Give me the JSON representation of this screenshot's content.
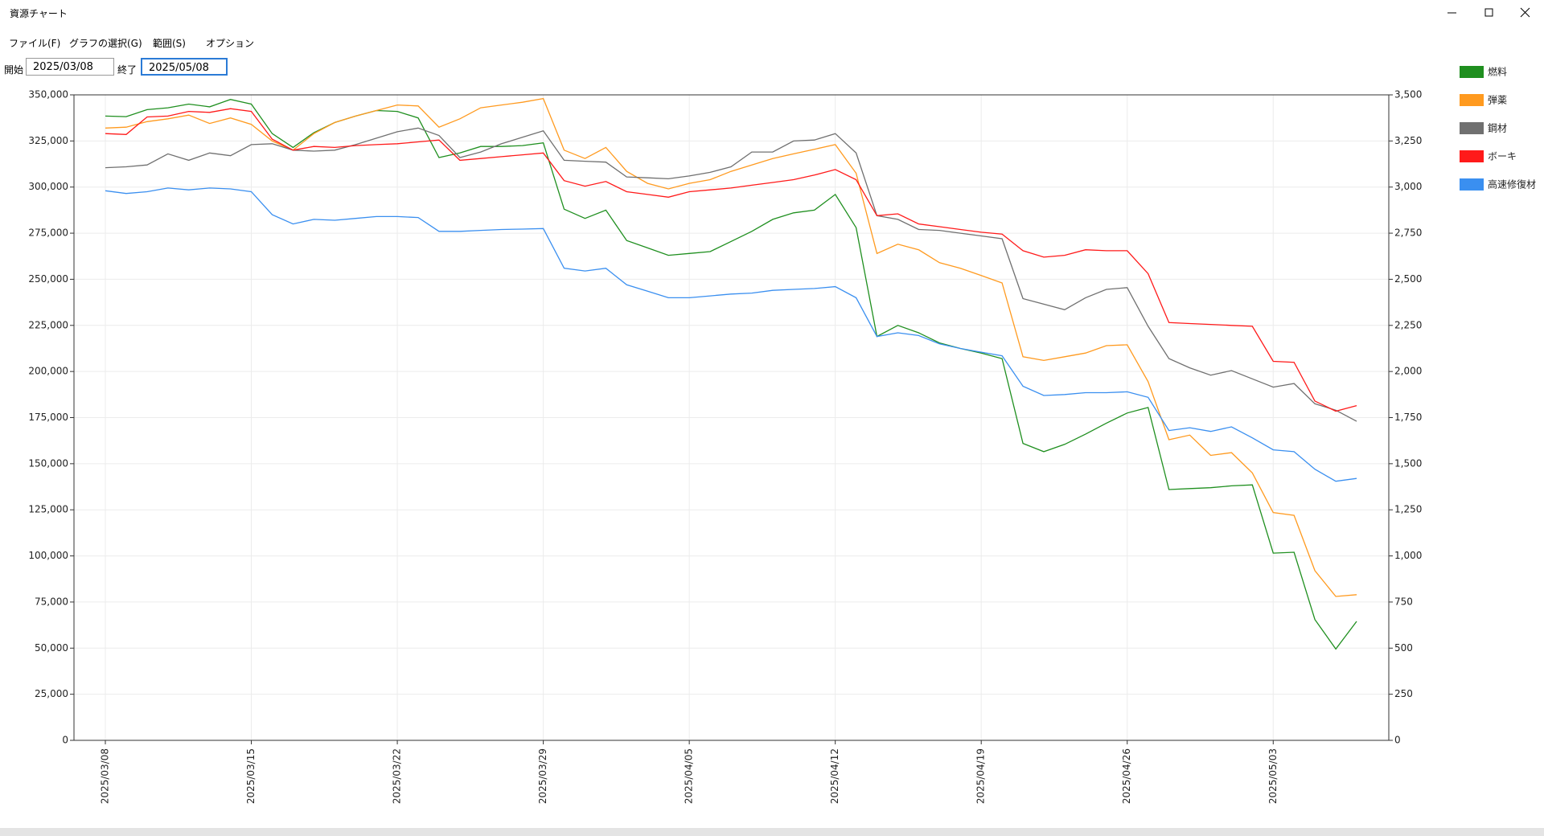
{
  "window": {
    "title": "資源チャート"
  },
  "menu": [
    "ファイル(F)",
    "グラフの選択(G)",
    "範囲(S)",
    "オプション"
  ],
  "range": {
    "start_label": "開始",
    "start": "2025/03/08",
    "end_label": "終了",
    "end": "2025/05/08"
  },
  "chart_data": {
    "type": "line",
    "categories": [
      "2025/03/08",
      null,
      null,
      null,
      null,
      null,
      null,
      "2025/03/15",
      null,
      null,
      null,
      null,
      null,
      null,
      "2025/03/22",
      null,
      null,
      null,
      null,
      null,
      null,
      "2025/03/29",
      null,
      null,
      null,
      null,
      null,
      null,
      "2025/04/05",
      null,
      null,
      null,
      null,
      null,
      null,
      "2025/04/12",
      null,
      null,
      null,
      null,
      null,
      null,
      "2025/04/19",
      null,
      null,
      null,
      null,
      null,
      null,
      "2025/04/26",
      null,
      null,
      null,
      null,
      null,
      null,
      "2025/05/03",
      null,
      null,
      null,
      null
    ],
    "series": [
      {
        "name": "燃料",
        "color": "#1f8f1f",
        "values": [
          338500,
          338200,
          342000,
          343000,
          345000,
          343500,
          347500,
          345000,
          329000,
          321500,
          329500,
          335000,
          338500,
          341500,
          341000,
          337500,
          316000,
          318500,
          322000,
          322000,
          322500,
          324000,
          288000,
          283000,
          287500,
          271000,
          267000,
          263000,
          264000,
          265000,
          270500,
          276000,
          282500,
          286000,
          287500,
          296000,
          278000,
          219000,
          225000,
          221000,
          215500,
          212500,
          210000,
          207000,
          161000,
          156500,
          160500,
          166000,
          172000,
          177500,
          180500,
          136000,
          136500,
          137000,
          138000,
          138500,
          101500,
          102000,
          65500,
          49500,
          64500
        ]
      },
      {
        "name": "弾薬",
        "color": "#ff9a1f",
        "values": [
          332000,
          332500,
          335500,
          337000,
          339000,
          334500,
          337500,
          334000,
          325000,
          320000,
          329000,
          335000,
          338500,
          341500,
          344500,
          344000,
          332500,
          337000,
          343000,
          344500,
          346000,
          348000,
          320000,
          315500,
          321500,
          308500,
          302000,
          299000,
          302000,
          304000,
          308500,
          312000,
          315500,
          318000,
          320500,
          323000,
          307500,
          264000,
          269000,
          266000,
          259000,
          256000,
          252000,
          248000,
          208000,
          206000,
          208000,
          210000,
          214000,
          214500,
          194500,
          163000,
          165500,
          154500,
          156000,
          145000,
          123500,
          122000,
          92000,
          78000,
          79000
        ]
      },
      {
        "name": "鋼材",
        "color": "#707070",
        "values": [
          310500,
          311000,
          312000,
          318000,
          314500,
          318500,
          317000,
          323000,
          323500,
          320000,
          319500,
          320000,
          323000,
          326500,
          330000,
          332000,
          328000,
          316000,
          319000,
          323500,
          327000,
          330500,
          314500,
          314000,
          313500,
          305500,
          305000,
          304500,
          306000,
          308000,
          311000,
          319000,
          319000,
          325000,
          325500,
          329000,
          318500,
          284500,
          282500,
          277000,
          276500,
          275000,
          273500,
          272000,
          239500,
          236500,
          233500,
          240000,
          244500,
          245500,
          224500,
          207000,
          202000,
          198000,
          200500,
          196000,
          191500,
          193500,
          182500,
          179000,
          173000
        ]
      },
      {
        "name": "ボーキ",
        "color": "#ff1a1a",
        "values": [
          329000,
          328500,
          338000,
          338500,
          341000,
          340500,
          342500,
          341000,
          326000,
          320000,
          322000,
          321500,
          322500,
          323000,
          323500,
          324500,
          325500,
          314500,
          315500,
          316500,
          317500,
          318500,
          303500,
          300500,
          303000,
          297500,
          296000,
          294500,
          297500,
          298500,
          299500,
          301000,
          302500,
          304000,
          306500,
          309500,
          304000,
          284500,
          285500,
          280000,
          278500,
          277000,
          275500,
          274500,
          265500,
          262000,
          263000,
          266000,
          265500,
          265500,
          253000,
          226500,
          226000,
          225500,
          225000,
          224500,
          205500,
          205000,
          184000,
          178500,
          181500
        ]
      },
      {
        "name": "高速修復材",
        "color": "#3a8ff0",
        "axis": "y2",
        "values": [
          2980,
          2965,
          2975,
          2995,
          2985,
          2995,
          2990,
          2975,
          2850,
          2800,
          2825,
          2820,
          2830,
          2840,
          2840,
          2835,
          2760,
          2760,
          2765,
          2770,
          2772,
          2775,
          2560,
          2545,
          2560,
          2470,
          2435,
          2400,
          2400,
          2410,
          2420,
          2425,
          2440,
          2445,
          2450,
          2460,
          2400,
          2190,
          2210,
          2195,
          2150,
          2125,
          2105,
          2085,
          1920,
          1870,
          1875,
          1885,
          1885,
          1890,
          1860,
          1680,
          1695,
          1675,
          1700,
          1640,
          1575,
          1565,
          1470,
          1405,
          1420
        ]
      }
    ],
    "ylim": [
      0,
      350000
    ],
    "yticks": [
      0,
      {
        "value": 25000,
        "label": "25,000"
      },
      {
        "value": 50000,
        "label": "50,000"
      },
      {
        "value": 75000,
        "label": "75,000"
      },
      {
        "value": 100000,
        "label": "100,000"
      },
      {
        "value": 125000,
        "label": "125,000"
      },
      {
        "value": 150000,
        "label": "150,000"
      },
      {
        "value": 175000,
        "label": "175,000"
      },
      {
        "value": 200000,
        "label": "200,000"
      },
      {
        "value": 225000,
        "label": "225,000"
      },
      {
        "value": 250000,
        "label": "250,000"
      },
      {
        "value": 275000,
        "label": "275,000"
      },
      {
        "value": 300000,
        "label": "300,000"
      },
      {
        "value": 325000,
        "label": "325,000"
      },
      {
        "value": 350000,
        "label": "350,000"
      }
    ],
    "y2lim": [
      0,
      3500
    ],
    "y2ticks": [
      0,
      250,
      500,
      750,
      {
        "value": 1000,
        "label": "1,000"
      },
      {
        "value": 1250,
        "label": "1,250"
      },
      {
        "value": 1500,
        "label": "1,500"
      },
      {
        "value": 1750,
        "label": "1,750"
      },
      {
        "value": 2000,
        "label": "2,000"
      },
      {
        "value": 2250,
        "label": "2,250"
      },
      {
        "value": 2500,
        "label": "2,500"
      },
      {
        "value": 2750,
        "label": "2,750"
      },
      {
        "value": 3000,
        "label": "3,000"
      },
      {
        "value": 3250,
        "label": "3,250"
      },
      {
        "value": 3500,
        "label": "3,500"
      }
    ],
    "grid": true,
    "legend": "right"
  }
}
